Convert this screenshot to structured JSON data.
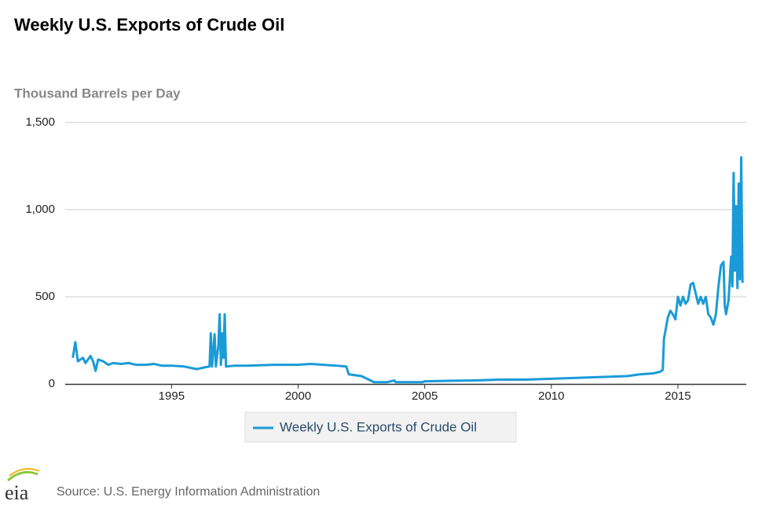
{
  "chart_data": {
    "type": "line",
    "title": "Weekly U.S. Exports of Crude Oil",
    "y_axis_label": "Thousand Barrels per Day",
    "source": "Source: U.S. Energy Information Administration",
    "logo_text": "eia",
    "xlim": [
      1990.8,
      2017.7
    ],
    "xticks": [
      1995,
      2000,
      2005,
      2010,
      2015
    ],
    "ylim": [
      0,
      1500
    ],
    "yticks": [
      0,
      500,
      {
        "value": 1000,
        "label": "1,000"
      },
      {
        "value": 1500,
        "label": "1,500"
      }
    ],
    "grid": true,
    "x": [
      1991.1,
      1991.2,
      1991.3,
      1991.5,
      1991.6,
      1991.8,
      1991.9,
      1992.0,
      1992.1,
      1992.3,
      1992.5,
      1992.7,
      1993.0,
      1993.3,
      1993.6,
      1994.0,
      1994.3,
      1994.6,
      1995.0,
      1995.5,
      1996.0,
      1996.3,
      1996.5,
      1996.55,
      1996.6,
      1996.7,
      1996.75,
      1996.85,
      1996.9,
      1996.95,
      1997.0,
      1997.05,
      1997.1,
      1997.15,
      1997.5,
      1998.0,
      1999.0,
      2000.0,
      2000.5,
      2001.0,
      2001.5,
      2001.9,
      2002.0,
      2002.5,
      2003.0,
      2003.5,
      2003.8,
      2003.85,
      2004.5,
      2004.9,
      2005.0,
      2006.0,
      2007.0,
      2008.0,
      2009.0,
      2010.0,
      2011.0,
      2012.0,
      2013.0,
      2013.5,
      2014.0,
      2014.3,
      2014.4,
      2014.45,
      2014.5,
      2014.6,
      2014.7,
      2014.8,
      2014.9,
      2015.0,
      2015.1,
      2015.2,
      2015.3,
      2015.4,
      2015.5,
      2015.6,
      2015.7,
      2015.8,
      2015.9,
      2016.0,
      2016.1,
      2016.2,
      2016.3,
      2016.4,
      2016.5,
      2016.6,
      2016.7,
      2016.8,
      2016.85,
      2016.9,
      2017.0,
      2017.05,
      2017.1,
      2017.15,
      2017.2,
      2017.25,
      2017.3,
      2017.35,
      2017.4,
      2017.45,
      2017.5,
      2017.55
    ],
    "series": [
      {
        "name": "Weekly U.S. Exports of Crude Oil",
        "color": "#1a9bd7",
        "values": [
          150,
          240,
          130,
          150,
          120,
          160,
          130,
          75,
          140,
          130,
          110,
          120,
          115,
          120,
          110,
          110,
          115,
          105,
          105,
          100,
          85,
          95,
          100,
          290,
          100,
          285,
          100,
          220,
          400,
          110,
          290,
          150,
          400,
          100,
          105,
          105,
          110,
          110,
          115,
          110,
          105,
          100,
          55,
          45,
          10,
          10,
          20,
          10,
          10,
          10,
          15,
          18,
          20,
          25,
          25,
          30,
          35,
          40,
          45,
          55,
          60,
          70,
          80,
          260,
          300,
          380,
          420,
          400,
          370,
          500,
          450,
          500,
          460,
          480,
          570,
          580,
          520,
          460,
          500,
          460,
          500,
          400,
          380,
          340,
          400,
          560,
          680,
          700,
          450,
          400,
          480,
          600,
          730,
          560,
          1210,
          650,
          1020,
          550,
          1150,
          600,
          1300,
          580
        ]
      }
    ]
  }
}
